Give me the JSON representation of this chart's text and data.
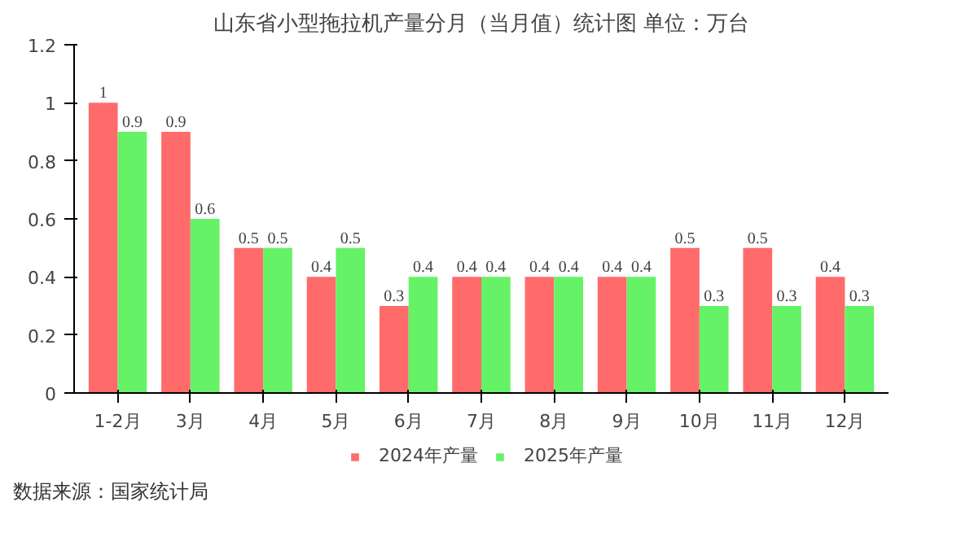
{
  "chart_data": {
    "type": "bar",
    "title": "山东省小型拖拉机产量分月（当月值）统计图 单位：万台",
    "categories": [
      "1-2月",
      "3月",
      "4月",
      "5月",
      "6月",
      "7月",
      "8月",
      "9月",
      "10月",
      "11月",
      "12月"
    ],
    "series": [
      {
        "name": "2024年产量",
        "color": "#ff6b6b",
        "values": [
          1,
          0.9,
          0.5,
          0.4,
          0.3,
          0.4,
          0.4,
          0.4,
          0.5,
          0.5,
          0.4
        ]
      },
      {
        "name": "2025年产量",
        "color": "#66f266",
        "values": [
          0.9,
          0.6,
          0.5,
          0.5,
          0.4,
          0.4,
          0.4,
          0.4,
          0.3,
          0.3,
          0.3
        ]
      }
    ],
    "ylim": [
      0,
      1.2
    ],
    "yticks": [
      0,
      0.2,
      0.4,
      0.6,
      0.8,
      1,
      1.2
    ],
    "data_labels": true,
    "legend": "bottom",
    "annotations": [
      "数据来源：国家统计局"
    ]
  }
}
